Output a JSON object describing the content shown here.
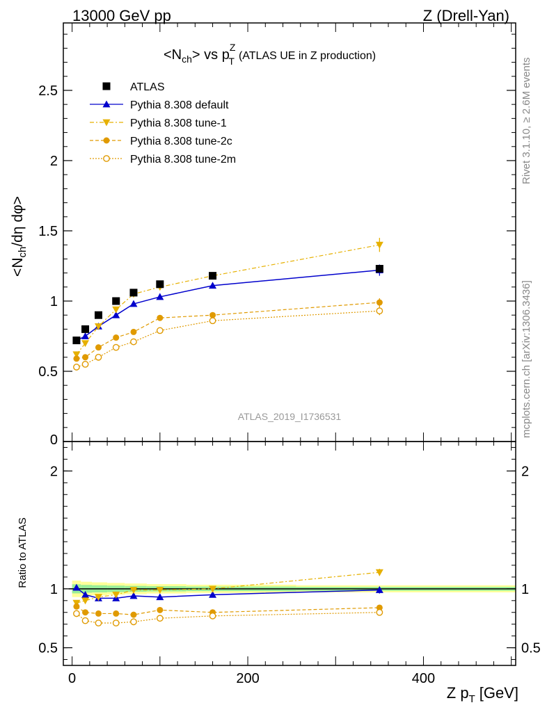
{
  "header": {
    "left": "13000 GeV pp",
    "right": "Z (Drell-Yan)"
  },
  "title": {
    "main": "<N",
    "main_sub": "ch",
    "main_mid": "> vs p",
    "main_sup": "Z",
    "main_sub2": "T",
    "extra": "(ATLAS UE in Z production)"
  },
  "side_text": {
    "rivet": "Rivet 3.1.10, ≥ 2.6M events",
    "mcplots": "mcplots.cern.ch [arXiv:1306.3436]"
  },
  "watermark": "ATLAS_2019_I1736531",
  "chart_data": {
    "type": "line",
    "xlabel": "Z p",
    "xlabel_sub": "T",
    "xlabel_unit": "[GeV]",
    "ylabel": "<N",
    "ylabel_sub": "ch",
    "ylabel_rest": "/dη dφ>",
    "ratio_ylabel": "Ratio to ATLAS",
    "xlim": [
      -10,
      505
    ],
    "ylim": [
      0,
      2.98
    ],
    "ratio_ylim": [
      0.35,
      2.25
    ],
    "x_ticks": [
      0,
      200,
      400
    ],
    "y_ticks": [
      0.5,
      1,
      1.5,
      2,
      2.5
    ],
    "y_zero_label": "0",
    "ratio_y_ticks": [
      0.5,
      1,
      2
    ],
    "x": [
      5,
      15,
      30,
      50,
      70,
      100,
      160,
      350
    ],
    "data": {
      "name": "ATLAS",
      "values": [
        0.72,
        0.8,
        0.9,
        1.0,
        1.06,
        1.12,
        1.18,
        1.23
      ],
      "errors": [
        0.01,
        0.01,
        0.01,
        0.01,
        0.01,
        0.01,
        0.015,
        0.02
      ],
      "band_rel": [
        0.07,
        0.06,
        0.055,
        0.05,
        0.045,
        0.04,
        0.035,
        0.03
      ]
    },
    "series": [
      {
        "name": "Pythia 8.308 default",
        "color": "#0000cc",
        "dash": "",
        "marker": "triangle-up",
        "values": [
          0.72,
          0.75,
          0.82,
          0.9,
          0.98,
          1.03,
          1.11,
          1.22
        ],
        "errors": [
          0.01,
          0.01,
          0.01,
          0.01,
          0.01,
          0.01,
          0.015,
          0.04
        ],
        "ratio": [
          1.01,
          0.95,
          0.92,
          0.92,
          0.94,
          0.93,
          0.95,
          0.99
        ],
        "ratio_errors": [
          0.01,
          0.01,
          0.01,
          0.01,
          0.01,
          0.01,
          0.01,
          0.03
        ]
      },
      {
        "name": "Pythia 8.308 tune-1",
        "color": "#e6b000",
        "dash": "6,3,2,3",
        "marker": "triangle-down",
        "values": [
          0.62,
          0.7,
          0.82,
          0.94,
          1.05,
          1.1,
          1.18,
          1.4
        ],
        "errors": [
          0.01,
          0.01,
          0.01,
          0.01,
          0.01,
          0.01,
          0.015,
          0.05
        ],
        "ratio": [
          0.88,
          0.9,
          0.93,
          0.95,
          0.99,
          0.99,
          1.0,
          1.14
        ],
        "ratio_errors": [
          0.01,
          0.01,
          0.01,
          0.01,
          0.01,
          0.01,
          0.01,
          0.03
        ]
      },
      {
        "name": "Pythia 8.308 tune-2c",
        "color": "#e09a00",
        "dash": "5,3",
        "marker": "circle",
        "values": [
          0.59,
          0.6,
          0.67,
          0.74,
          0.78,
          0.88,
          0.9,
          0.99
        ],
        "errors": [
          0.01,
          0.01,
          0.01,
          0.01,
          0.01,
          0.01,
          0.01,
          0.03
        ],
        "ratio": [
          0.85,
          0.8,
          0.79,
          0.79,
          0.78,
          0.82,
          0.8,
          0.84
        ],
        "ratio_errors": [
          0.01,
          0.01,
          0.01,
          0.01,
          0.01,
          0.01,
          0.01,
          0.02
        ]
      },
      {
        "name": "Pythia 8.308 tune-2m",
        "color": "#e09a00",
        "dash": "2,2",
        "marker": "circle-open",
        "values": [
          0.53,
          0.55,
          0.6,
          0.67,
          0.71,
          0.79,
          0.86,
          0.93
        ],
        "errors": [
          0.01,
          0.01,
          0.01,
          0.01,
          0.01,
          0.01,
          0.01,
          0.03
        ],
        "ratio": [
          0.79,
          0.73,
          0.71,
          0.71,
          0.72,
          0.75,
          0.77,
          0.8
        ],
        "ratio_errors": [
          0.01,
          0.01,
          0.01,
          0.01,
          0.01,
          0.01,
          0.01,
          0.02
        ]
      }
    ]
  }
}
